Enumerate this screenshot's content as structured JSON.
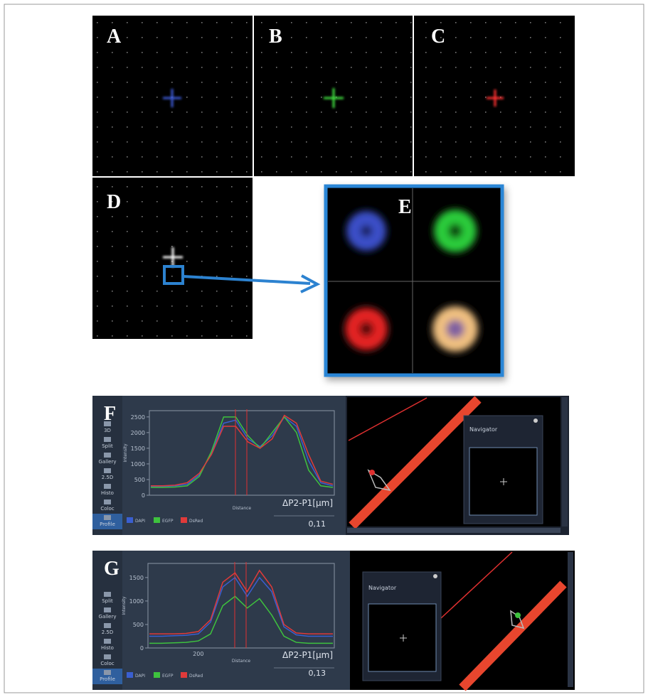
{
  "panel_labels": [
    "A",
    "B",
    "C",
    "D",
    "E"
  ],
  "profile_views": [
    {
      "label": "F",
      "toolbar": [
        "3D",
        "Split",
        "Gallery",
        "2.5D",
        "Histo",
        "Coloc",
        "Profile"
      ],
      "navigator": "Navigator",
      "delta_label": "ΔP2-P1[μm]",
      "delta_value": "0,11"
    },
    {
      "label": "G",
      "toolbar": [
        "Split",
        "Gallery",
        "2.5D",
        "Histo",
        "Coloc",
        "Profile"
      ],
      "navigator": "Navigator",
      "delta_label": "ΔP2-P1[μm]",
      "delta_value": "0,13"
    }
  ],
  "chart_data": [
    {
      "type": "line",
      "x_label": "Distance",
      "y_label": "Intensity",
      "categories": [
        null,
        null,
        null,
        null,
        null,
        null,
        null,
        null,
        null,
        null,
        null,
        null,
        null,
        null,
        null,
        null
      ],
      "ylim": [
        0,
        2700
      ],
      "yticks": [
        0,
        500,
        1000,
        1500,
        2000,
        2500
      ],
      "series": [
        {
          "name": "DAPI",
          "color": "#3a5fd0",
          "values": [
            280,
            280,
            300,
            350,
            650,
            1350,
            2300,
            2400,
            1800,
            1550,
            1900,
            2500,
            2200,
            1100,
            400,
            300
          ]
        },
        {
          "name": "EGFP",
          "color": "#3ec23e",
          "values": [
            250,
            250,
            260,
            300,
            600,
            1400,
            2500,
            2500,
            1900,
            1500,
            2000,
            2500,
            2000,
            800,
            300,
            250
          ]
        },
        {
          "name": "DsRed",
          "color": "#e03a3a",
          "values": [
            300,
            300,
            320,
            400,
            700,
            1300,
            2200,
            2200,
            1700,
            1500,
            1800,
            2550,
            2300,
            1300,
            450,
            350
          ]
        }
      ]
    },
    {
      "type": "line",
      "x_label": "Distance",
      "y_label": "Intensity",
      "categories": [
        null,
        null,
        null,
        null,
        "200",
        null,
        null,
        null,
        null,
        null,
        null,
        null,
        null,
        null,
        null,
        null
      ],
      "ylim": [
        0,
        1800
      ],
      "yticks": [
        0,
        500,
        1000,
        1500
      ],
      "series": [
        {
          "name": "DAPI",
          "color": "#3a5fd0",
          "values": [
            250,
            250,
            260,
            270,
            300,
            550,
            1300,
            1500,
            1100,
            1500,
            1200,
            450,
            280,
            250,
            250,
            250
          ]
        },
        {
          "name": "EGFP",
          "color": "#3ec23e",
          "values": [
            100,
            100,
            110,
            120,
            150,
            300,
            900,
            1100,
            850,
            1050,
            700,
            250,
            120,
            100,
            100,
            100
          ]
        },
        {
          "name": "DsRed",
          "color": "#e03a3a",
          "values": [
            300,
            300,
            300,
            310,
            350,
            600,
            1400,
            1600,
            1200,
            1650,
            1300,
            500,
            320,
            300,
            300,
            300
          ]
        }
      ]
    }
  ]
}
